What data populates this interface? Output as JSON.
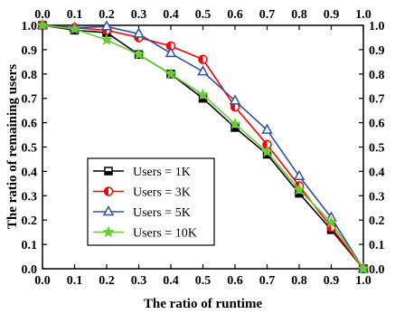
{
  "chart_data": {
    "type": "line",
    "xlabel": "The ratio of runtime",
    "ylabel": "The ratio of remaining users",
    "xlim": [
      0,
      1
    ],
    "ylim": [
      0,
      1
    ],
    "xticks": [
      "0.0",
      "0.1",
      "0.2",
      "0.3",
      "0.4",
      "0.5",
      "0.6",
      "0.7",
      "0.8",
      "0.9",
      "1.0"
    ],
    "yticks": [
      "0.0",
      "0.1",
      "0.2",
      "0.3",
      "0.4",
      "0.5",
      "0.6",
      "0.7",
      "0.8",
      "0.9",
      "1.0"
    ],
    "mirror_axes": true,
    "grid": false,
    "legend_position": "lower-left",
    "x": [
      0.0,
      0.1,
      0.2,
      0.3,
      0.4,
      0.5,
      0.6,
      0.7,
      0.8,
      0.9,
      1.0
    ],
    "series": [
      {
        "name": "Users = 1K",
        "color": "#000000",
        "marker": "half-square",
        "values": [
          1.0,
          0.98,
          0.97,
          0.88,
          0.8,
          0.7,
          0.58,
          0.47,
          0.31,
          0.16,
          0.0
        ]
      },
      {
        "name": "Users = 3K",
        "color": "#ff0000",
        "marker": "half-circle",
        "values": [
          1.0,
          0.99,
          0.98,
          0.95,
          0.915,
          0.86,
          0.665,
          0.51,
          0.34,
          0.17,
          0.0
        ]
      },
      {
        "name": "Users = 5K",
        "color": "#3050a0",
        "marker": "triangle",
        "values": [
          1.0,
          0.99,
          0.995,
          0.965,
          0.885,
          0.81,
          0.69,
          0.57,
          0.38,
          0.21,
          0.0
        ]
      },
      {
        "name": "Users = 10K",
        "color": "#66cc33",
        "marker": "star",
        "values": [
          1.0,
          0.985,
          0.94,
          0.88,
          0.8,
          0.715,
          0.595,
          0.48,
          0.325,
          0.19,
          0.0
        ]
      }
    ]
  }
}
